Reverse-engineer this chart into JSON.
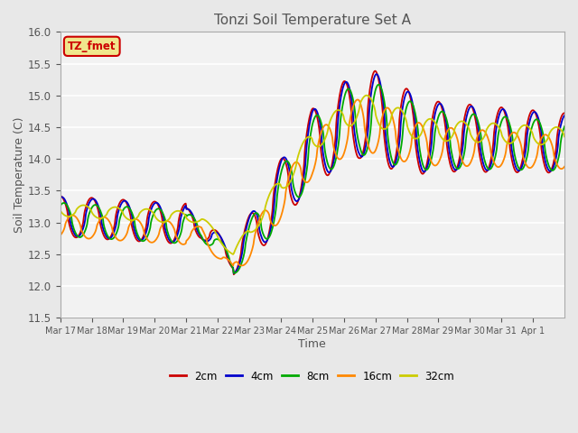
{
  "title": "Tonzi Soil Temperature Set A",
  "xlabel": "Time",
  "ylabel": "Soil Temperature (C)",
  "legend_label": "TZ_fmet",
  "ylim": [
    11.5,
    16.0
  ],
  "yticks": [
    11.5,
    12.0,
    12.5,
    13.0,
    13.5,
    14.0,
    14.5,
    15.0,
    15.5,
    16.0
  ],
  "x_tick_labels": [
    "Mar 17",
    "Mar 18",
    "Mar 19",
    "Mar 20",
    "Mar 21",
    "Mar 22",
    "Mar 23",
    "Mar 24",
    "Mar 25",
    "Mar 26",
    "Mar 27",
    "Mar 28",
    "Mar 29",
    "Mar 30",
    "Mar 31",
    "Apr 1"
  ],
  "line_colors": [
    "#cc0000",
    "#0000cc",
    "#00aa00",
    "#ff8800",
    "#cccc00"
  ],
  "line_labels": [
    "2cm",
    "4cm",
    "8cm",
    "16cm",
    "32cm"
  ],
  "background_color": "#e8e8e8",
  "plot_background": "#f2f2f2",
  "grid_color": "#ffffff",
  "title_color": "#555555",
  "label_color": "#555555",
  "legend_box_color": "#f0e68c",
  "legend_box_edge": "#cc0000"
}
